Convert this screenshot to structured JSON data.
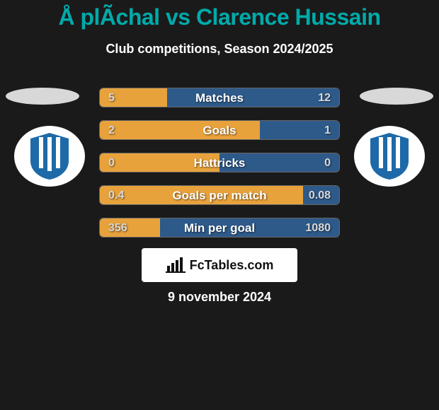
{
  "title": "Å plÃ­chal vs Clarence Hussain",
  "subtitle": "Club competitions, Season 2024/2025",
  "date_label": "9 november 2024",
  "brand_label": "FcTables.com",
  "colors": {
    "left_fill": "#e8a23c",
    "right_fill": "#2e5a8a",
    "bar_border": "#666666",
    "center_text": "#ffffff",
    "val_text": "#d8d8d8",
    "title_color": "#00aaaa",
    "badge_blue": "#1e6aa8"
  },
  "bars": [
    {
      "label": "Matches",
      "left_val": "5",
      "right_val": "12",
      "left_frac": 0.28
    },
    {
      "label": "Goals",
      "left_val": "2",
      "right_val": "1",
      "left_frac": 0.67
    },
    {
      "label": "Hattricks",
      "left_val": "0",
      "right_val": "0",
      "left_frac": 0.5
    },
    {
      "label": "Goals per match",
      "left_val": "0.4",
      "right_val": "0.08",
      "left_frac": 0.85
    },
    {
      "label": "Min per goal",
      "left_val": "356",
      "right_val": "1080",
      "left_frac": 0.25
    }
  ]
}
